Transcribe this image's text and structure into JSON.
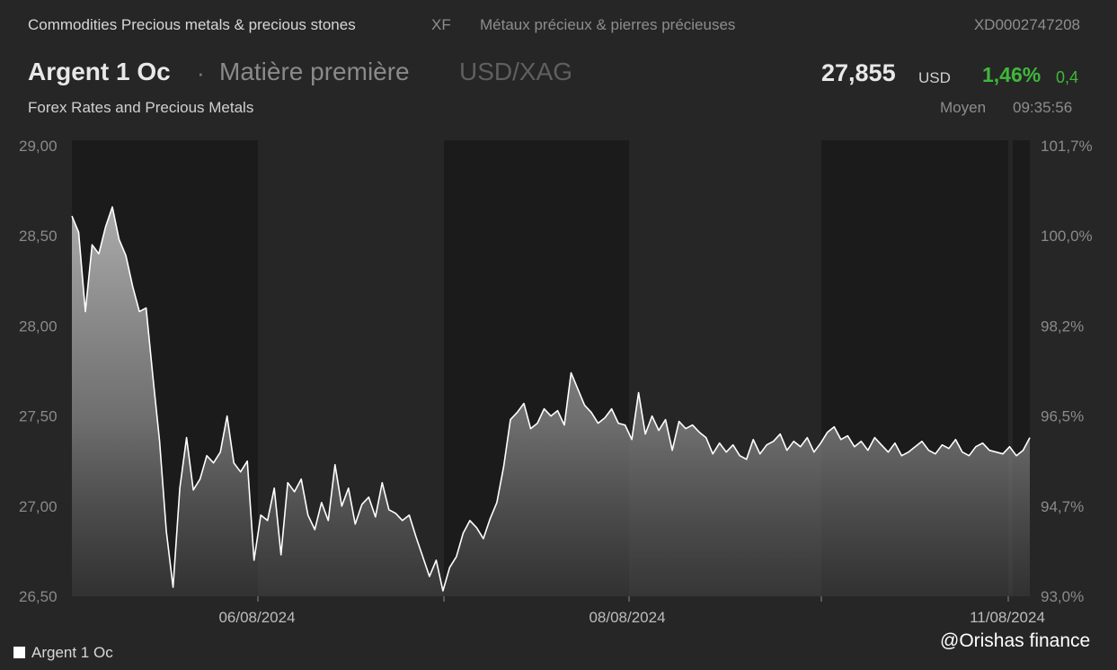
{
  "header": {
    "category": "Commodities Precious metals & precious stones",
    "exchange_code": "XF",
    "category_fr": "Métaux précieux & pierres précieuses",
    "isin": "XD0002747208",
    "instrument_name": "Argent 1 Oc",
    "separator": "·",
    "instrument_type": "Matière première",
    "pair": "USD/XAG",
    "subtitle": "Forex Rates and Precious Metals"
  },
  "quote": {
    "price": "27,855",
    "currency": "USD",
    "change_pct": "1,46%",
    "change_abs": "0,4",
    "price_type": "Moyen",
    "time": "09:35:56",
    "positive_color": "#3fb83a"
  },
  "legend": {
    "label": "Argent 1 Oc",
    "color": "#ffffff"
  },
  "credit": "@Orishas finance",
  "chart_data": {
    "type": "area",
    "ylim": [
      26.5,
      29.0
    ],
    "y_ticks": [
      "29,00",
      "28,50",
      "28,00",
      "27,50",
      "27,00",
      "26,50"
    ],
    "y_tick_values": [
      29.0,
      28.5,
      28.0,
      27.5,
      27.0,
      26.5
    ],
    "y2_ticks": [
      "101,7%",
      "100,0%",
      "98,2%",
      "96,5%",
      "94,7%",
      "93,0%"
    ],
    "x_ticks": [
      "06/08/2024",
      "08/08/2024",
      "11/08/2024"
    ],
    "series": [
      {
        "name": "Argent 1 Oc",
        "color": "#ffffff",
        "x": [
          0,
          1,
          2,
          3,
          4,
          5,
          6,
          7,
          8,
          9,
          10,
          11,
          12,
          13,
          14,
          15,
          16,
          17,
          18,
          19,
          20,
          21,
          22,
          23,
          24,
          25,
          26,
          27,
          28,
          29,
          30,
          31,
          32,
          33,
          34,
          35,
          36,
          37,
          38,
          39,
          40,
          41,
          42,
          43,
          44,
          45,
          46,
          47,
          48,
          49,
          50,
          51,
          52,
          53,
          54,
          55,
          56,
          57,
          58,
          59,
          60,
          61,
          62,
          63,
          64,
          65,
          66,
          67,
          68,
          69,
          70,
          71,
          72,
          73,
          74,
          75,
          76,
          77,
          78,
          79,
          80,
          81,
          82,
          83,
          84,
          85,
          86,
          87,
          88,
          89,
          90,
          91,
          92,
          93,
          94,
          95,
          96,
          97,
          98,
          99,
          100,
          101,
          102,
          103,
          104,
          105,
          106,
          107,
          108,
          109,
          110,
          111,
          112,
          113,
          114,
          115,
          116,
          117,
          118,
          119,
          120,
          121,
          122,
          123,
          124,
          125,
          126,
          127,
          128,
          129,
          130,
          131,
          132,
          133,
          134,
          135,
          136,
          137,
          138,
          139,
          140,
          141,
          142
        ],
        "values": [
          28.61,
          28.52,
          28.08,
          28.45,
          28.4,
          28.55,
          28.66,
          28.48,
          28.39,
          28.22,
          28.08,
          28.1,
          27.72,
          27.36,
          26.86,
          26.55,
          27.1,
          27.38,
          27.09,
          27.15,
          27.28,
          27.24,
          27.3,
          27.5,
          27.24,
          27.19,
          27.25,
          26.7,
          26.95,
          26.92,
          27.1,
          26.73,
          27.13,
          27.08,
          27.15,
          26.95,
          26.87,
          27.02,
          26.92,
          27.23,
          27.0,
          27.1,
          26.9,
          27.01,
          27.05,
          26.94,
          27.13,
          26.98,
          26.96,
          26.92,
          26.95,
          26.83,
          26.72,
          26.61,
          26.7,
          26.53,
          26.66,
          26.72,
          26.85,
          26.92,
          26.88,
          26.82,
          26.93,
          27.02,
          27.22,
          27.48,
          27.52,
          27.57,
          27.43,
          27.46,
          27.54,
          27.5,
          27.53,
          27.45,
          27.74,
          27.65,
          27.56,
          27.52,
          27.46,
          27.49,
          27.54,
          27.46,
          27.45,
          27.37,
          27.63,
          27.4,
          27.5,
          27.42,
          27.48,
          27.31,
          27.47,
          27.43,
          27.45,
          27.41,
          27.38,
          27.29,
          27.35,
          27.3,
          27.34,
          27.28,
          27.26,
          27.37,
          27.29,
          27.34,
          27.36,
          27.4,
          27.31,
          27.36,
          27.33,
          27.38,
          27.3,
          27.35,
          27.41,
          27.44,
          27.37,
          27.39,
          27.33,
          27.36,
          27.31,
          27.38,
          27.34,
          27.3,
          27.35,
          27.28,
          27.3,
          27.33,
          27.36,
          27.31,
          27.29,
          27.34,
          27.32,
          27.37,
          27.3,
          27.28,
          27.33,
          27.35,
          27.31,
          27.3,
          27.29,
          27.33,
          27.28,
          27.31,
          27.38
        ]
      }
    ]
  }
}
